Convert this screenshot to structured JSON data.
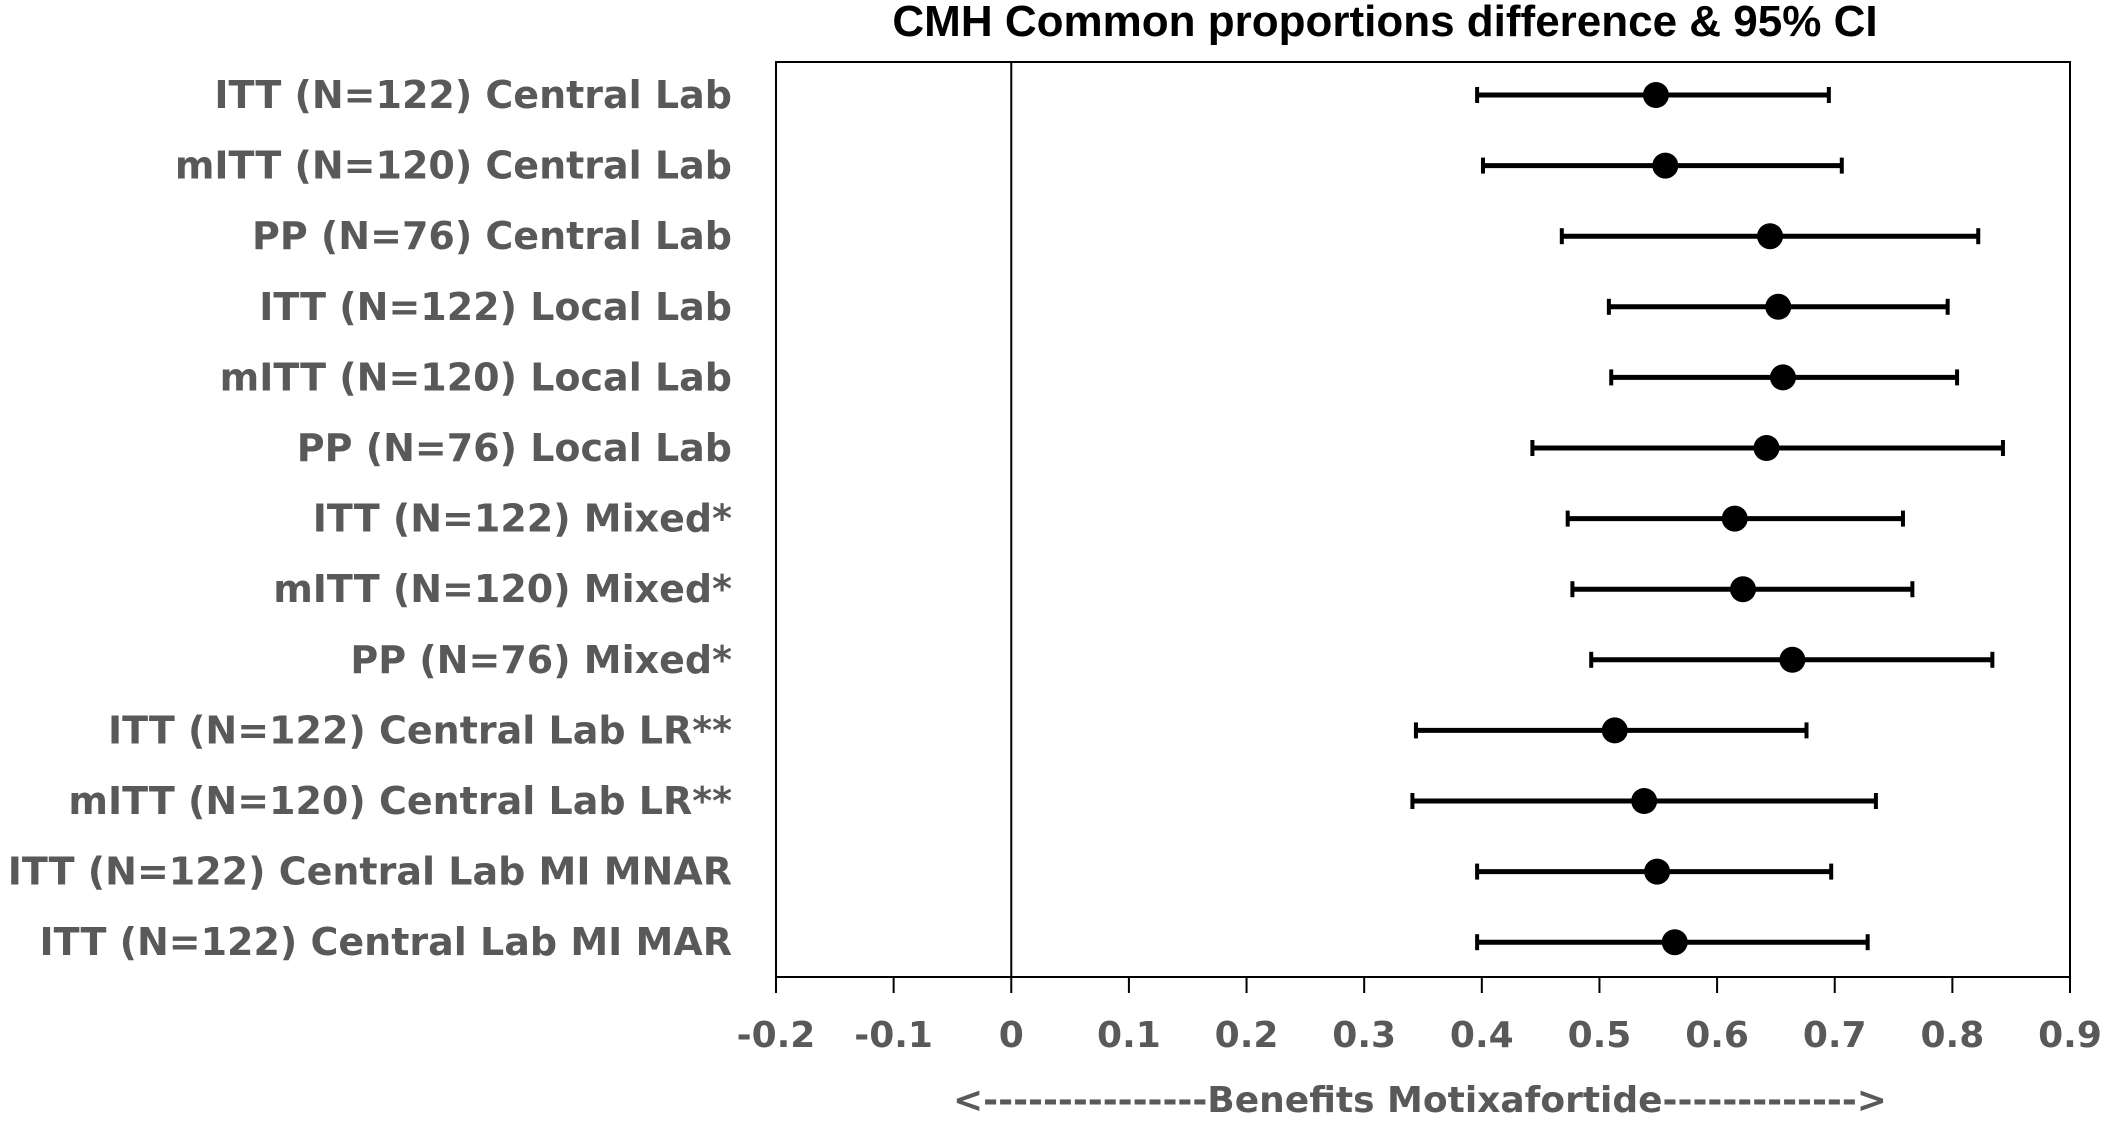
{
  "chart_data": {
    "type": "forest",
    "title": "CMH Common proportions difference & 95% CI",
    "xlabel": "<---------------Benefits  Motixafortide------------->",
    "xlim": [
      -0.2,
      0.9
    ],
    "xticks": [
      -0.2,
      -0.1,
      0,
      0.1,
      0.2,
      0.3,
      0.4,
      0.5,
      0.6,
      0.7,
      0.8,
      0.9
    ],
    "xtick_labels": [
      "-0.2",
      "-0.1",
      "0",
      "0.1",
      "0.2",
      "0.3",
      "0.4",
      "0.5",
      "0.6",
      "0.7",
      "0.8",
      "0.9"
    ],
    "reference_line": 0,
    "colors": {
      "marker": "#000000",
      "text": "#595959",
      "axis": "#000000"
    },
    "rows": [
      {
        "label": "ITT (N=122) Central Lab",
        "estimate": 0.548,
        "lower": 0.396,
        "upper": 0.695
      },
      {
        "label": "mITT (N=120) Central Lab",
        "estimate": 0.556,
        "lower": 0.401,
        "upper": 0.706
      },
      {
        "label": "PP (N=76) Central Lab",
        "estimate": 0.645,
        "lower": 0.468,
        "upper": 0.822
      },
      {
        "label": "ITT (N=122) Local Lab",
        "estimate": 0.652,
        "lower": 0.508,
        "upper": 0.796
      },
      {
        "label": "mITT (N=120) Local Lab",
        "estimate": 0.656,
        "lower": 0.51,
        "upper": 0.804
      },
      {
        "label": "PP (N=76) Local Lab",
        "estimate": 0.642,
        "lower": 0.443,
        "upper": 0.843
      },
      {
        "label": "ITT (N=122) Mixed*",
        "estimate": 0.615,
        "lower": 0.473,
        "upper": 0.758
      },
      {
        "label": "mITT (N=120) Mixed*",
        "estimate": 0.622,
        "lower": 0.477,
        "upper": 0.766
      },
      {
        "label": "PP (N=76) Mixed*",
        "estimate": 0.664,
        "lower": 0.493,
        "upper": 0.834
      },
      {
        "label": "ITT (N=122) Central Lab LR**",
        "estimate": 0.513,
        "lower": 0.344,
        "upper": 0.676
      },
      {
        "label": "mITT (N=120) Central Lab LR**",
        "estimate": 0.538,
        "lower": 0.341,
        "upper": 0.735
      },
      {
        "label": "ITT (N=122) Central Lab MI MNAR",
        "estimate": 0.549,
        "lower": 0.396,
        "upper": 0.697
      },
      {
        "label": "ITT (N=122) Central Lab MI MAR",
        "estimate": 0.564,
        "lower": 0.396,
        "upper": 0.728
      }
    ]
  }
}
